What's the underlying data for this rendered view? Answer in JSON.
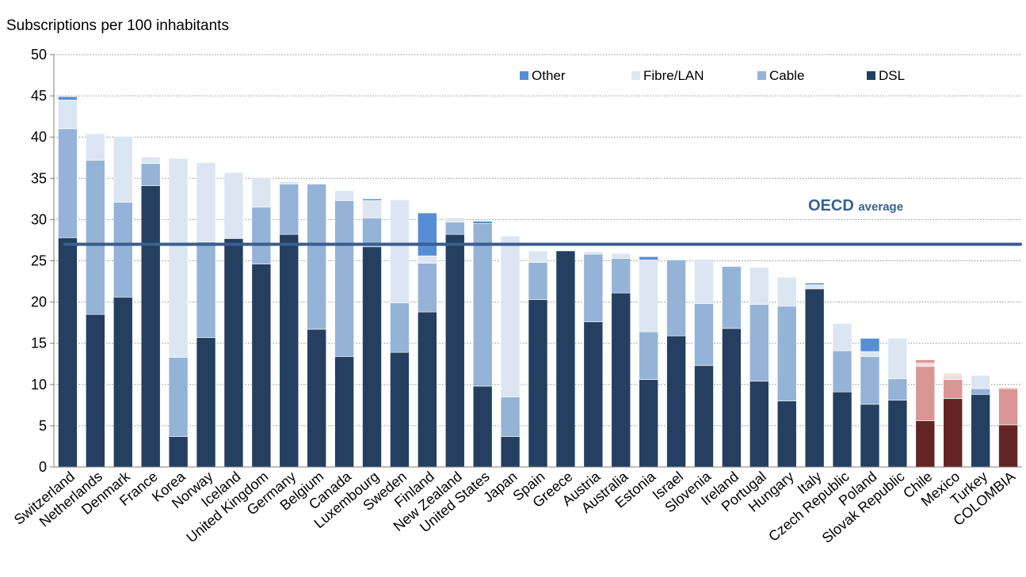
{
  "chart_data": {
    "type": "bar",
    "stacked": true,
    "ylabel": "Subscriptions per 100 inhabitants",
    "ylim": [
      0,
      50
    ],
    "yticks": [
      "0",
      "5",
      "10",
      "15",
      "20",
      "25",
      "30",
      "35",
      "40",
      "45",
      "50"
    ],
    "grid": "horizontal dotted",
    "legend_position": "top-right",
    "categories": [
      "Switzerland",
      "Netherlands",
      "Denmark",
      "France",
      "Korea",
      "Norway",
      "Iceland",
      "United Kingdom",
      "Germany",
      "Belgium",
      "Canada",
      "Luxembourg",
      "Sweden",
      "Finland",
      "New Zealand",
      "United States",
      "Japan",
      "Spain",
      "Greece",
      "Austria",
      "Australia",
      "Estonia",
      "Israel",
      "Slovenia",
      "Ireland",
      "Portugal",
      "Hungary",
      "Italy",
      "Czech Republic",
      "Poland",
      "Slovak Republic",
      "Chile",
      "Mexico",
      "Turkey",
      "COLOMBIA"
    ],
    "series": [
      {
        "name": "DSL",
        "color": "#243f60",
        "values": [
          27.8,
          18.5,
          20.6,
          34.1,
          3.7,
          15.7,
          27.7,
          24.6,
          28.2,
          16.7,
          13.4,
          26.7,
          13.9,
          18.8,
          28.2,
          9.8,
          3.7,
          20.3,
          26.2,
          17.6,
          21.1,
          10.6,
          15.9,
          12.3,
          16.8,
          10.4,
          8.0,
          21.6,
          9.1,
          7.6,
          8.1,
          5.6,
          8.3,
          8.8,
          5.1
        ]
      },
      {
        "name": "Cable",
        "color": "#95b3d7",
        "values": [
          13.2,
          18.7,
          11.5,
          2.7,
          9.6,
          11.6,
          0.0,
          6.9,
          6.1,
          17.6,
          18.9,
          3.5,
          6.0,
          5.9,
          1.5,
          19.7,
          4.8,
          4.5,
          0.0,
          8.2,
          4.2,
          5.8,
          9.2,
          7.5,
          7.5,
          9.3,
          11.5,
          0.0,
          5.0,
          5.8,
          2.6,
          6.6,
          2.3,
          0.7,
          4.4
        ]
      },
      {
        "name": "Fibre/LAN",
        "color": "#dce6f2",
        "values": [
          3.5,
          3.2,
          8.0,
          0.8,
          24.1,
          9.6,
          8.0,
          3.6,
          0.3,
          0.0,
          1.2,
          2.1,
          12.5,
          0.9,
          0.5,
          0.0,
          19.5,
          1.4,
          0.0,
          0.3,
          0.6,
          8.7,
          0.0,
          5.2,
          0.0,
          4.5,
          3.5,
          0.5,
          3.3,
          0.6,
          4.9,
          0.4,
          0.6,
          1.6,
          0.0
        ]
      },
      {
        "name": "Other",
        "color": "#558ed5",
        "values": [
          0.4,
          0.0,
          0.0,
          0.0,
          0.0,
          0.0,
          0.0,
          0.0,
          0.0,
          0.0,
          0.0,
          0.2,
          0.0,
          5.2,
          0.0,
          0.3,
          0.0,
          0.0,
          0.0,
          0.0,
          0.0,
          0.4,
          0.0,
          0.1,
          0.0,
          0.0,
          0.0,
          0.2,
          0.0,
          1.6,
          0.0,
          0.4,
          0.1,
          0.0,
          0.1
        ]
      }
    ],
    "highlight": {
      "categories": [
        "Chile",
        "Mexico",
        "COLOMBIA"
      ],
      "colors": {
        "DSL": "#632523",
        "Cable": "#d99694",
        "Fibre/LAN": "#f2dcdb",
        "Other": "#d99694"
      }
    },
    "reference_line": {
      "label": "OECD",
      "label_suffix": "average",
      "value": 27.0,
      "color": "#3a5f8f"
    },
    "legend_order": [
      "Other",
      "Fibre/LAN",
      "Cable",
      "DSL"
    ]
  }
}
